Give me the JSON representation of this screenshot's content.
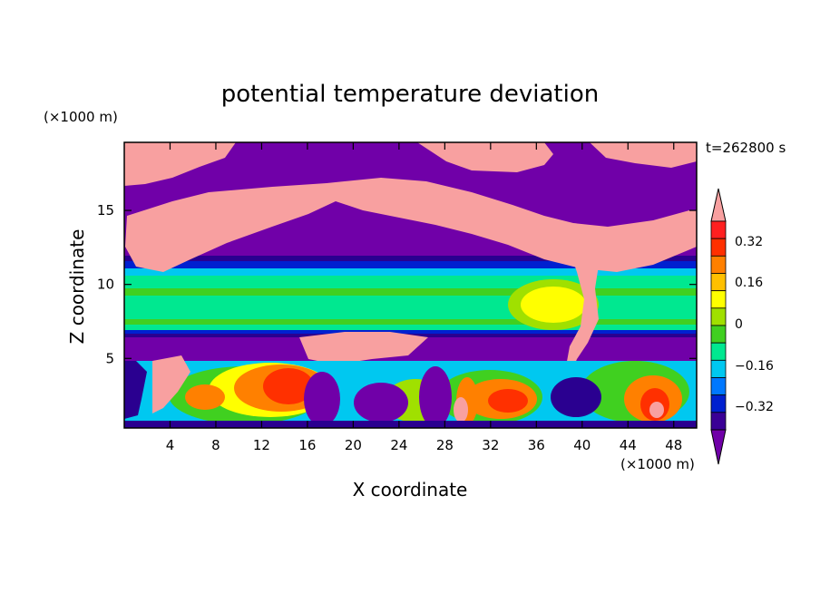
{
  "chart_data": {
    "type": "heatmap",
    "title": "potential temperature deviation",
    "xlabel": "X coordinate",
    "ylabel": "Z coordinate",
    "x_unit": "(×1000 m)",
    "y_unit": "(×1000 m)",
    "time_label": "t=262800 s",
    "xlim": [
      0,
      50
    ],
    "ylim": [
      0.3,
      19.6
    ],
    "x_ticks": [
      "4",
      "8",
      "12",
      "16",
      "20",
      "24",
      "28",
      "32",
      "36",
      "40",
      "44",
      "48"
    ],
    "y_ticks": [
      "5",
      "10",
      "15"
    ],
    "colorbar": {
      "labels": [
        "0.32",
        "0.16",
        "0",
        "−0.16",
        "−0.32"
      ],
      "bands": [
        "#7000a8",
        "#3a0096",
        "#0020d0",
        "#0078ff",
        "#00c8f0",
        "#00e890",
        "#40d020",
        "#a0e000",
        "#ffff00",
        "#ffc000",
        "#ff8000",
        "#ff3000",
        "#ff2020",
        "#f8a0a0"
      ]
    },
    "palette": {
      "purple": "#7000a8",
      "navy": "#2a0090",
      "blue": "#0020d0",
      "azure": "#0078ff",
      "cyan": "#00c8f0",
      "teal": "#00e890",
      "green": "#40d020",
      "lime": "#a0e000",
      "yellow": "#ffff00",
      "amber": "#ffc000",
      "orange": "#ff8000",
      "red": "#ff3000",
      "pink": "#f8a0a0"
    }
  }
}
